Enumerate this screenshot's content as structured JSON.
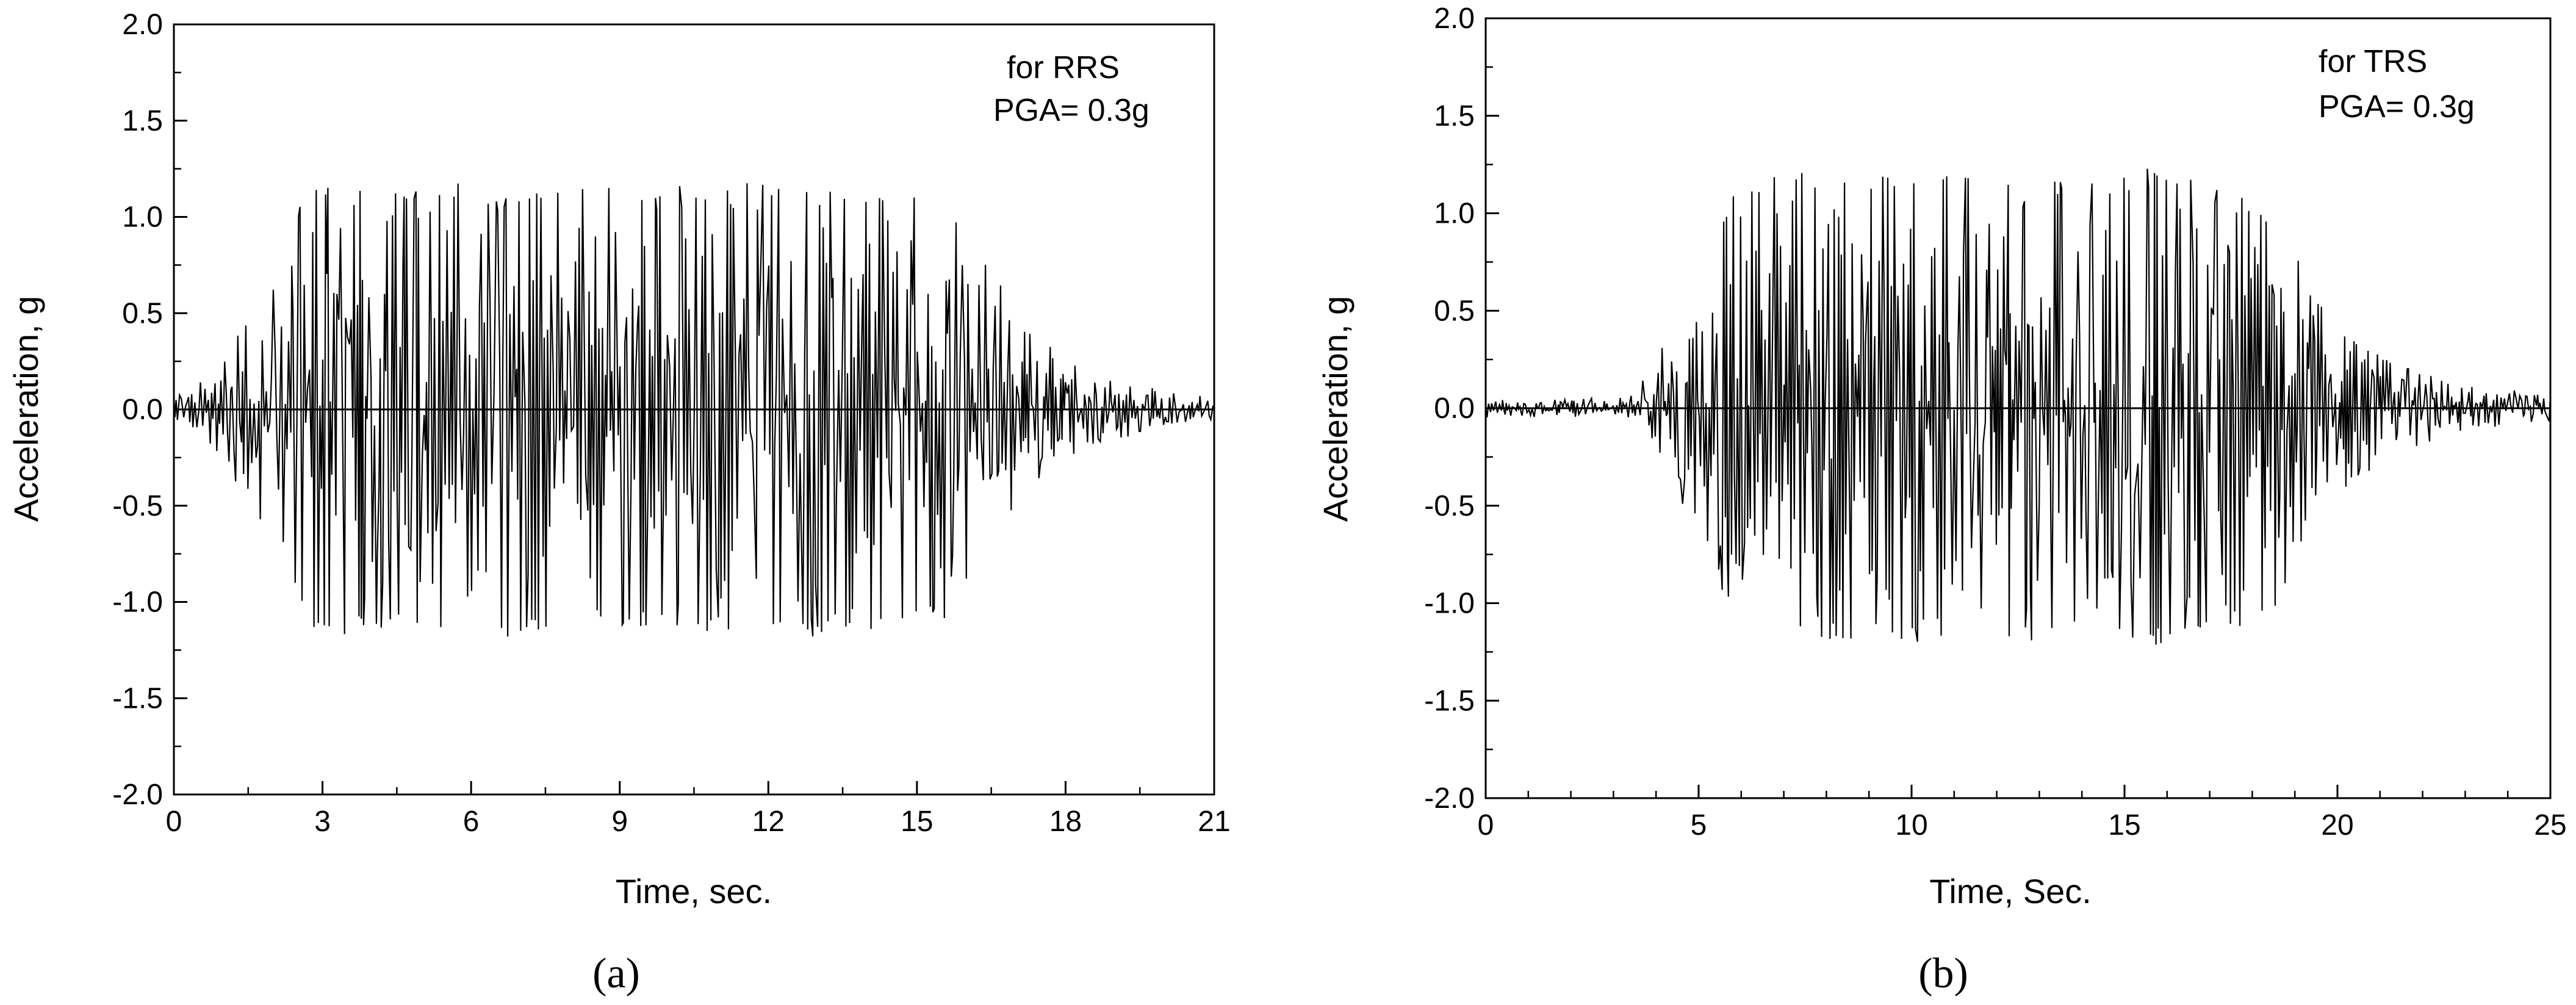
{
  "chart_data": [
    {
      "type": "line",
      "panel_label": "(a)",
      "annotation": [
        "for RRS",
        "PGA= 0.3g"
      ],
      "xlabel": "Time, sec.",
      "ylabel": "Acceleration, g",
      "xlim": [
        0,
        21
      ],
      "ylim": [
        -2.0,
        2.0
      ],
      "xticks": [
        0,
        3,
        6,
        9,
        12,
        15,
        18,
        21
      ],
      "xtick_labels": [
        "0",
        "3",
        "6",
        "9",
        "12",
        "15",
        "18",
        "21"
      ],
      "yticks": [
        -2.0,
        -1.5,
        -1.0,
        -0.5,
        0.0,
        0.5,
        1.0,
        1.5,
        2.0
      ],
      "ytick_labels": [
        "-2.0",
        "-1.5",
        "-1.0",
        "-0.5",
        "0.0",
        "0.5",
        "1.0",
        "1.5",
        "2.0"
      ],
      "grid": false,
      "zero_line": true,
      "series": [
        {
          "color": "#000000",
          "envelope": {
            "t": [
              0,
              0.5,
              1.0,
              1.5,
              2.0,
              2.5,
              3.0,
              4.0,
              6.0,
              9.0,
              12.0,
              14.0,
              15.5,
              16.5,
              17.0,
              17.5,
              18.0,
              19.0,
              20.0,
              21.0
            ],
            "amp": [
              0.05,
              0.12,
              0.25,
              0.5,
              0.75,
              1.05,
              1.17,
              1.17,
              1.17,
              1.17,
              1.17,
              1.17,
              1.1,
              0.75,
              0.5,
              0.38,
              0.27,
              0.15,
              0.09,
              0.06
            ]
          },
          "peak": 1.17,
          "duration": 21,
          "cycles_per_sec": 7.5
        }
      ]
    },
    {
      "type": "line",
      "panel_label": "(b)",
      "annotation": [
        "for TRS",
        "PGA= 0.3g"
      ],
      "xlabel": "Time, Sec.",
      "ylabel": "Acceleration, g",
      "xlim": [
        0,
        25
      ],
      "ylim": [
        -2.0,
        2.0
      ],
      "xticks": [
        0,
        5,
        10,
        15,
        20,
        25
      ],
      "xtick_labels": [
        "0",
        "5",
        "10",
        "15",
        "20",
        "25"
      ],
      "yticks": [
        -2.0,
        -1.5,
        -1.0,
        -0.5,
        0.0,
        0.5,
        1.0,
        1.5,
        2.0
      ],
      "ytick_labels": [
        "-2.0",
        "-1.5",
        "-1.0",
        "-0.5",
        "0.0",
        "0.5",
        "1.0",
        "1.5",
        "2.0"
      ],
      "grid": false,
      "zero_line": true,
      "series": [
        {
          "color": "#000000",
          "envelope": {
            "t": [
              0,
              3.0,
              3.5,
              4.0,
              4.5,
              5.0,
              5.5,
              6.0,
              7.0,
              10.0,
              13.0,
              16.0,
              18.5,
              19.5,
              20.5,
              21.5,
              22.5,
              23.5,
              25.0
            ],
            "amp": [
              0.04,
              0.04,
              0.08,
              0.25,
              0.45,
              0.6,
              0.9,
              1.2,
              1.2,
              1.2,
              1.2,
              1.22,
              1.05,
              0.55,
              0.35,
              0.22,
              0.14,
              0.09,
              0.06
            ]
          },
          "peak": 1.28,
          "duration": 25,
          "cycles_per_sec": 7.0
        }
      ]
    }
  ]
}
